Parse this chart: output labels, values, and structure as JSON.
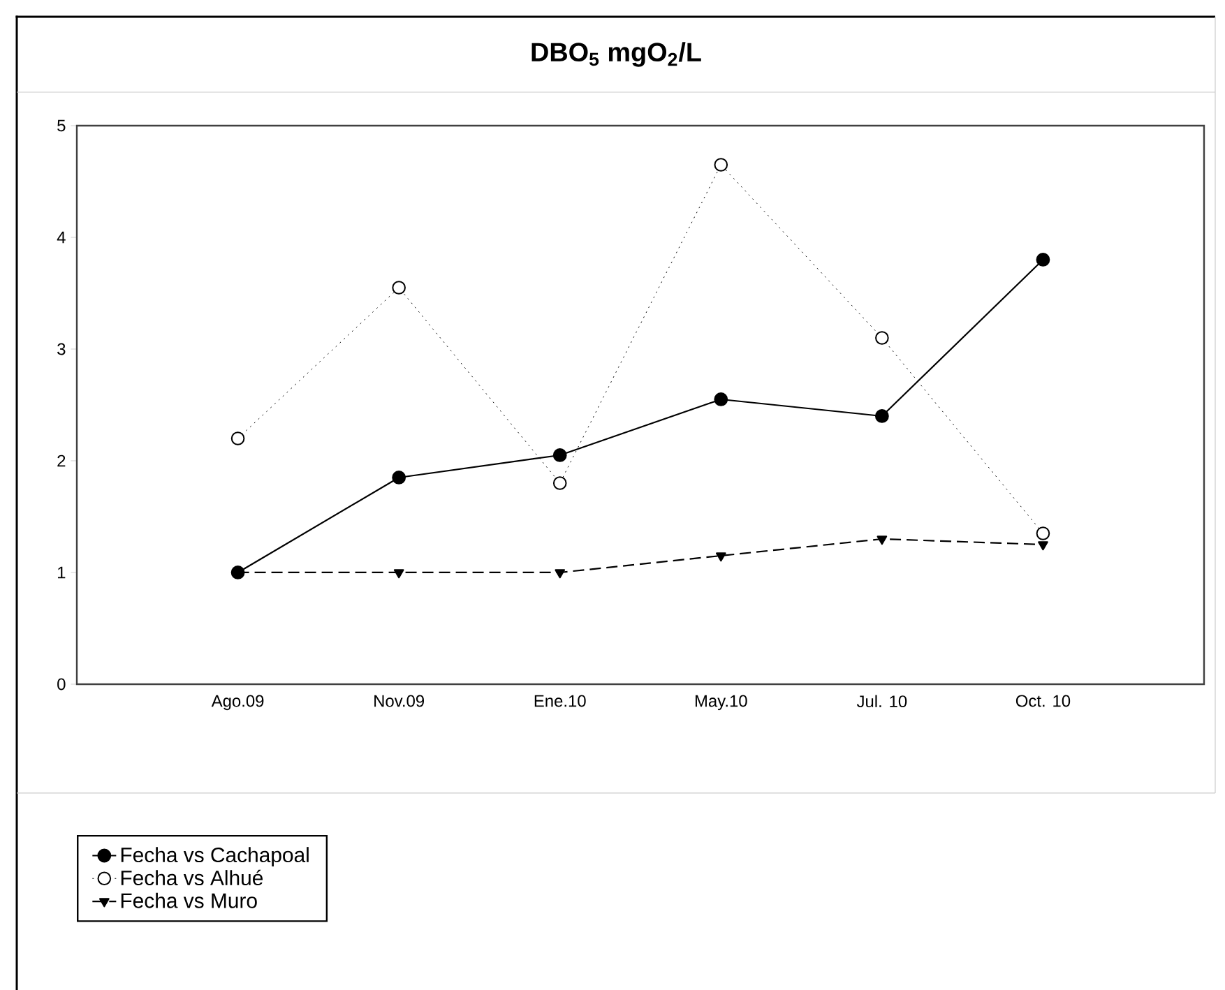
{
  "chart_data": {
    "type": "line",
    "title": "DBO$_{5}$ mgO$_{2}$/L",
    "categories": [
      "Ago.09",
      "Nov.09",
      "Ene.10",
      "May.10",
      "Jul. 10",
      "Oct. 10"
    ],
    "series": [
      {
        "name": "Fecha vs Cachapoal",
        "color": "#000000",
        "marker": "circle",
        "line_style": "solid",
        "values": [
          1.0,
          1.85,
          2.05,
          2.55,
          2.4,
          3.8
        ]
      },
      {
        "name": "Fecha vs Alhué",
        "color": "#000000",
        "marker": "circle",
        "line_style": "dotted",
        "values": [
          2.2,
          3.55,
          1.8,
          4.65,
          3.1,
          1.35
        ]
      },
      {
        "name": "Fecha vs Muro",
        "color": "#000000",
        "marker": "triangle",
        "line_style": "dashed",
        "values": [
          1.0,
          1.0,
          1.0,
          1.15,
          1.3,
          1.25
        ]
      }
    ],
    "ylim": [
      0,
      5
    ],
    "yticks": [
      0,
      1,
      2,
      3,
      4,
      5
    ],
    "grid": false,
    "legend": "bottom left"
  }
}
